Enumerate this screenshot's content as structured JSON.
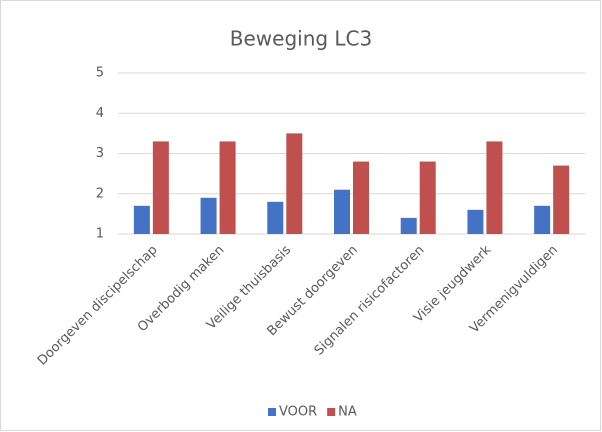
{
  "chart_data": {
    "type": "bar",
    "title": "Beweging LC3",
    "categories": [
      "Doorgeven discipelschap",
      "Overbodig maken",
      "Veilige thuisbasis",
      "Bewust doorgeven",
      "Signalen risicofactoren",
      "Visie jeugdwerk",
      "Vermenigvuldigen"
    ],
    "series": [
      {
        "name": "VOOR",
        "color": "#4472c4",
        "values": [
          1.7,
          1.9,
          1.8,
          2.1,
          1.4,
          1.6,
          1.7
        ]
      },
      {
        "name": "NA",
        "color": "#c0504d",
        "values": [
          3.3,
          3.3,
          3.5,
          2.8,
          2.8,
          3.3,
          2.7
        ]
      }
    ],
    "ylim": [
      1,
      5
    ],
    "yticks": [
      1,
      2,
      3,
      4,
      5
    ],
    "grid": true,
    "legend": "bottom"
  }
}
